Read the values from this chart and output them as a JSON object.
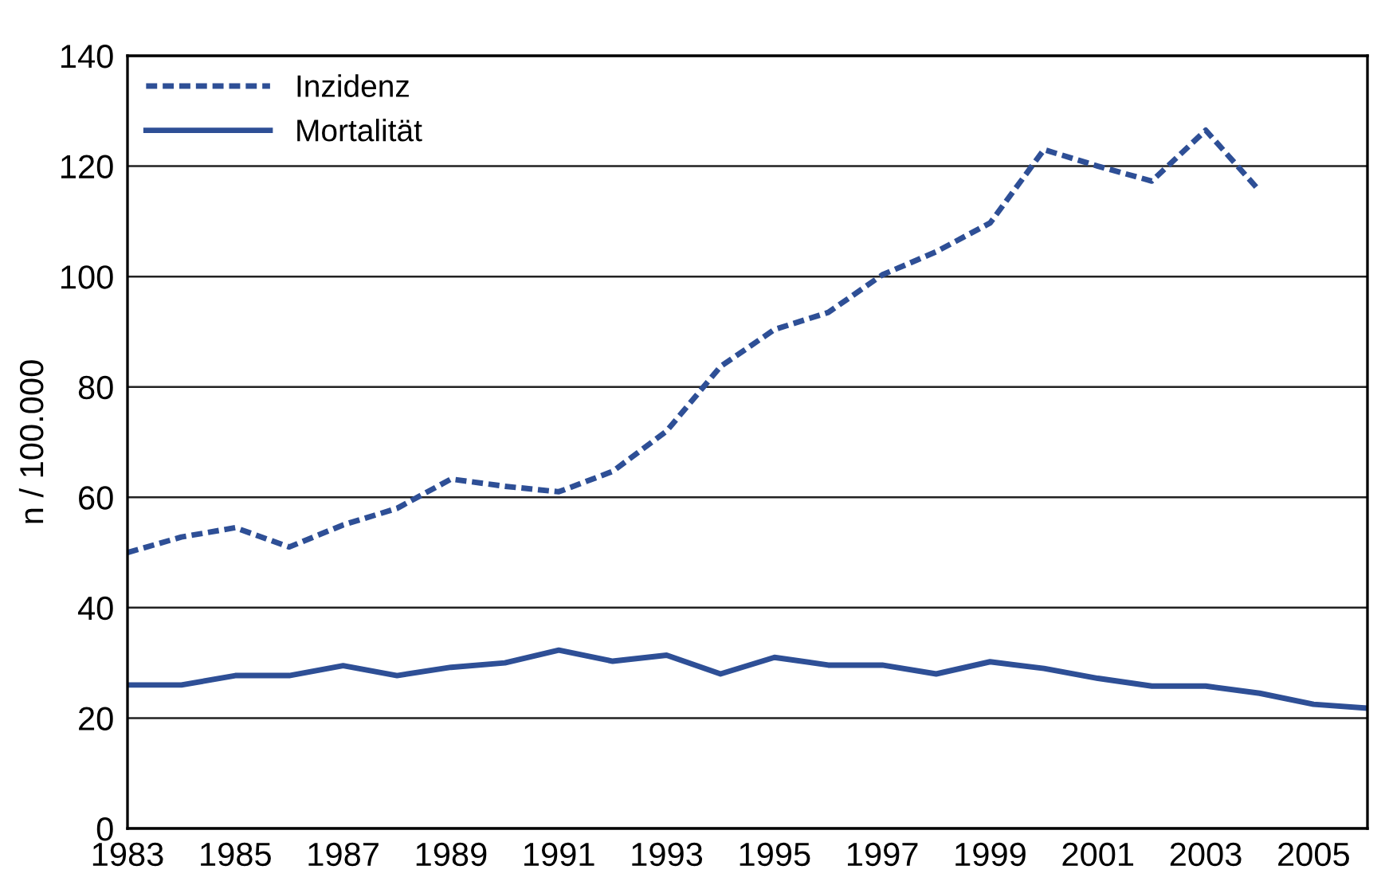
{
  "chart_data": {
    "type": "line",
    "ylabel": "n / 100.000",
    "x": [
      1983,
      1984,
      1985,
      1986,
      1987,
      1988,
      1989,
      1990,
      1991,
      1992,
      1993,
      1994,
      1995,
      1996,
      1997,
      1998,
      1999,
      2000,
      2001,
      2002,
      2003,
      2004,
      2005,
      2006
    ],
    "series": [
      {
        "name": "Inzidenz",
        "color": "#2e4f96",
        "line_style": "dashed",
        "values": [
          50,
          52.8,
          54.5,
          51,
          55,
          58,
          63.3,
          62,
          61,
          64.7,
          72,
          83.7,
          90.4,
          93.5,
          100.3,
          104.5,
          109.7,
          123,
          120,
          117.3,
          126.5,
          115.5,
          null,
          null
        ]
      },
      {
        "name": "Mortalität",
        "color": "#2e4f96",
        "line_style": "solid",
        "values": [
          26,
          26,
          27.7,
          27.7,
          29.5,
          27.7,
          29.2,
          30,
          32.3,
          30.3,
          31.4,
          28,
          31,
          29.6,
          29.6,
          28,
          30.2,
          29,
          27.2,
          25.8,
          25.8,
          24.5,
          22.5,
          21.8
        ]
      }
    ],
    "xlim": [
      1983,
      2006
    ],
    "xticks": [
      1983,
      1985,
      1987,
      1989,
      1991,
      1993,
      1995,
      1997,
      1999,
      2001,
      2003,
      2005
    ],
    "ylim": [
      0,
      140
    ],
    "yticks": [
      0,
      20,
      40,
      60,
      80,
      100,
      120,
      140
    ],
    "grid": "y",
    "legend": "top left",
    "marker": "none"
  }
}
